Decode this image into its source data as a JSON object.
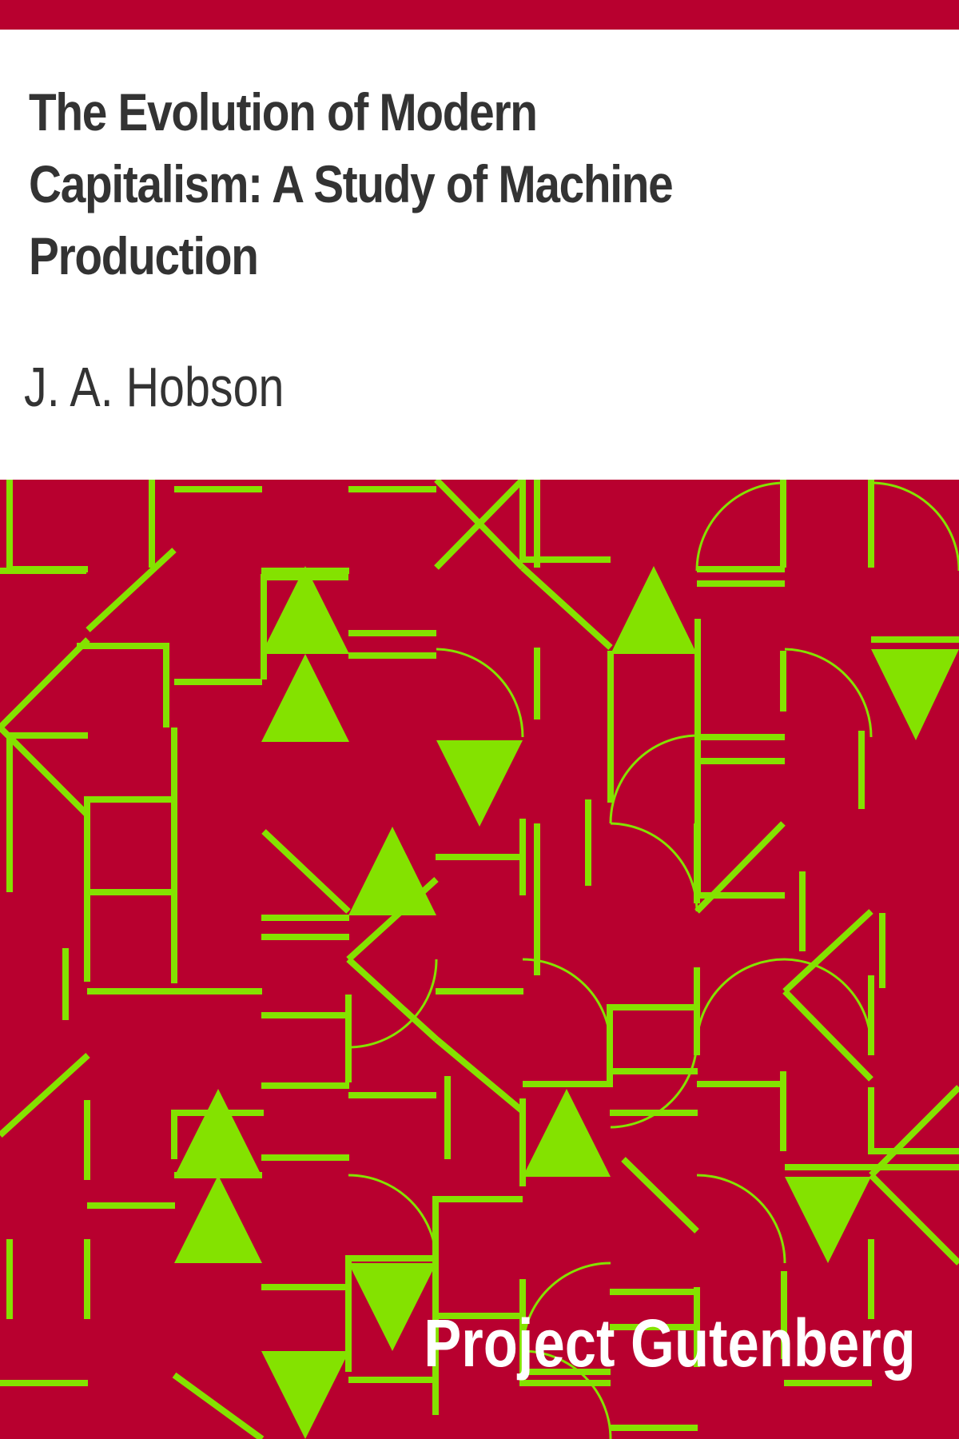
{
  "cover": {
    "title": "The Evolution of Modern Capitalism: A Study of Machine Production",
    "author": "J. A. Hobson",
    "publisher": "Project Gutenberg"
  },
  "colors": {
    "background": "#ffffff",
    "accent": "#b8002f",
    "pattern": "#84e200",
    "title_text": "#333333",
    "author_text": "#333333",
    "publisher_text": "#ffffff"
  },
  "pattern": {
    "motifs": [
      "triangle",
      "quarter-arc",
      "diagonal-line",
      "corner-bracket",
      "cross"
    ]
  }
}
